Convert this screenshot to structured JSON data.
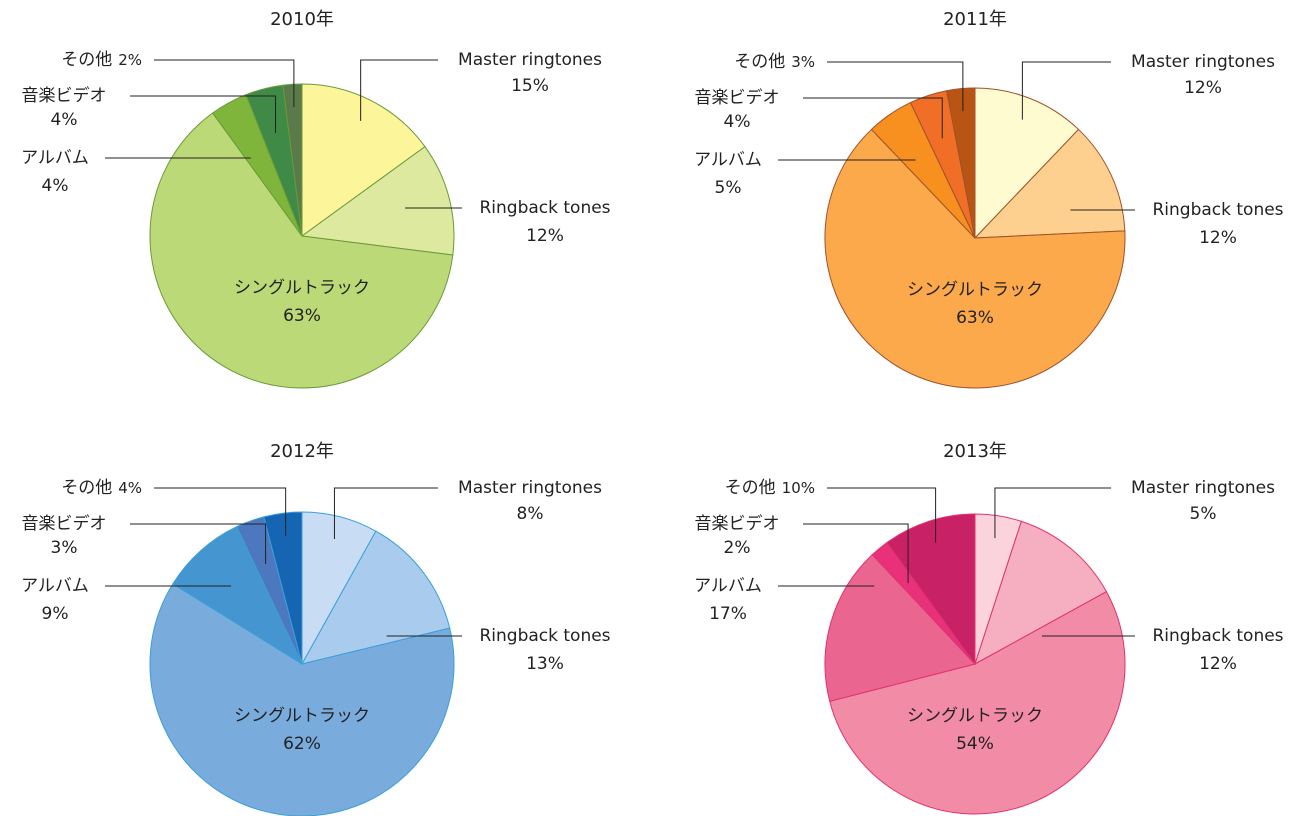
{
  "chart_data": [
    {
      "type": "pie",
      "title": "2010年",
      "categories": [
        "Master ringtones",
        "Ringback tones",
        "シングルトラック",
        "アルバム",
        "音楽ビデオ",
        "その他"
      ],
      "values": [
        15,
        12,
        63,
        4,
        4,
        2
      ],
      "value_labels": [
        "15%",
        "12%",
        "63%",
        "4%",
        "4%",
        "2%"
      ],
      "colors": [
        "#fdf59a",
        "#dde99e",
        "#bcd977",
        "#7fb53a",
        "#3f8a47",
        "#5a7a4a"
      ],
      "edge_color": "#6a9a3a"
    },
    {
      "type": "pie",
      "title": "2011年",
      "categories": [
        "Master ringtones",
        "Ringback tones",
        "シングルトラック",
        "アルバム",
        "音楽ビデオ",
        "その他"
      ],
      "values": [
        12,
        12,
        63,
        5,
        4,
        3
      ],
      "value_labels": [
        "12%",
        "12%",
        "63%",
        "5%",
        "4%",
        "3%"
      ],
      "colors": [
        "#fffbd0",
        "#fdd08f",
        "#fba94a",
        "#f7901e",
        "#f06e25",
        "#b85414"
      ],
      "edge_color": "#a0522d"
    },
    {
      "type": "pie",
      "title": "2012年",
      "categories": [
        "Master ringtones",
        "Ringback tones",
        "シングルトラック",
        "アルバム",
        "音楽ビデオ",
        "その他"
      ],
      "values": [
        8,
        13,
        62,
        9,
        3,
        4
      ],
      "value_labels": [
        "8%",
        "13%",
        "62%",
        "9%",
        "3%",
        "4%"
      ],
      "colors": [
        "#c8ddf4",
        "#a9cbee",
        "#79acdd",
        "#4595d0",
        "#4d78c0",
        "#1565b2"
      ],
      "edge_color": "#3aa0d8"
    },
    {
      "type": "pie",
      "title": "2013年",
      "categories": [
        "Master ringtones",
        "Ringback tones",
        "シングルトラック",
        "アルバム",
        "音楽ビデオ",
        "その他"
      ],
      "values": [
        5,
        12,
        54,
        17,
        2,
        10
      ],
      "value_labels": [
        "5%",
        "12%",
        "54%",
        "17%",
        "2%",
        "10%"
      ],
      "colors": [
        "#fbd3dc",
        "#f6afc0",
        "#f28ba6",
        "#ea6590",
        "#e8317a",
        "#c92166"
      ],
      "edge_color": "#e0336e"
    }
  ]
}
